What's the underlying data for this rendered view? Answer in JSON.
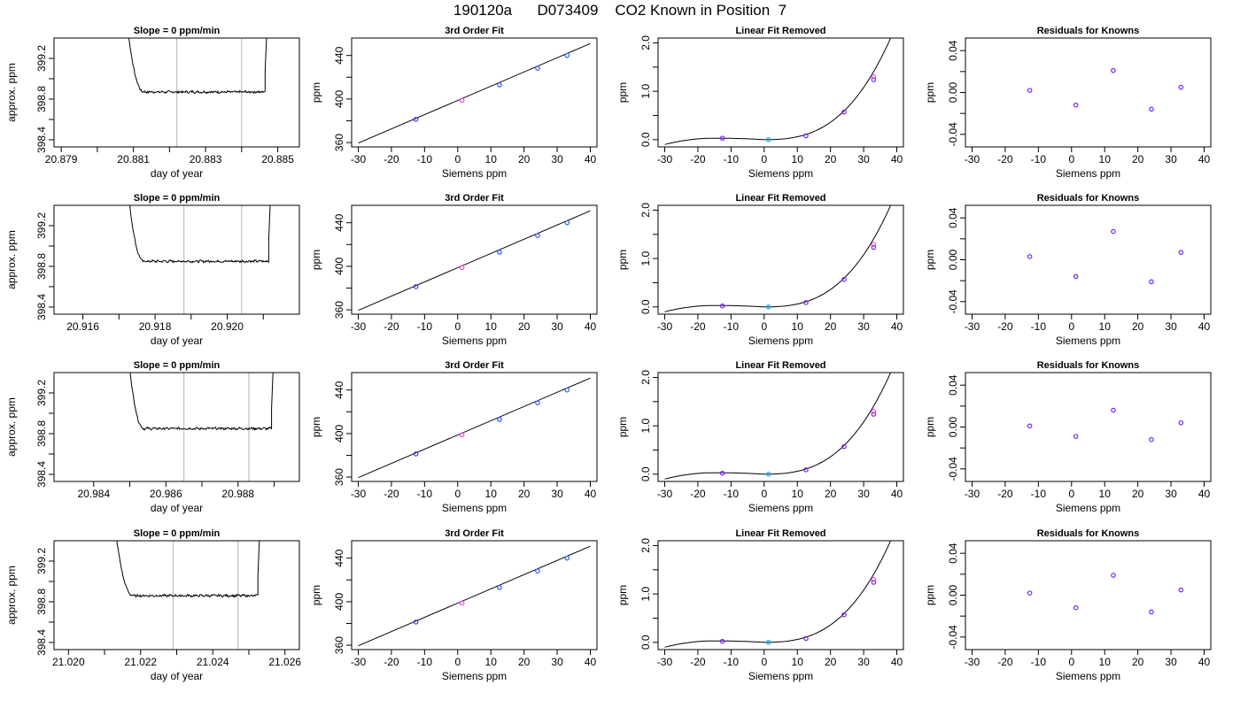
{
  "page": {
    "title": "190120a      D073409    CO2 Known in Position  7"
  },
  "chart_data": [
    {
      "row": 1,
      "panel": "time_trace",
      "type": "line",
      "title": "Slope =  0  ppm/min",
      "xlabel": "day of year",
      "ylabel": "approx. ppm",
      "xlim": [
        20.8788,
        20.8856
      ],
      "ylim": [
        398.33,
        399.4
      ],
      "xticks": [
        20.879,
        20.88,
        20.881,
        20.882,
        20.883,
        20.884,
        20.885
      ],
      "xticklabels": [
        "20.879",
        "",
        "20.881",
        "",
        "20.883",
        "",
        "20.885"
      ],
      "yticks": [
        398.4,
        398.6,
        398.8,
        399.0,
        399.2
      ],
      "yticklabels": [
        "398.4",
        "",
        "398.8",
        "",
        "399.2"
      ],
      "vlines": [
        20.8822,
        20.884
      ],
      "x_start": 20.8806,
      "x_end": 20.88465,
      "settle_x": 20.8813,
      "baseline": 398.87,
      "noise": 0.01
    },
    {
      "row": 1,
      "panel": "fit",
      "type": "scatter",
      "title": "3rd Order Fit",
      "xlabel": "Siemens ppm",
      "ylabel": "ppm",
      "xlim": [
        -32,
        42
      ],
      "ylim": [
        356,
        456
      ],
      "xticks": [
        -30,
        -20,
        -10,
        0,
        10,
        20,
        30,
        40
      ],
      "yticks": [
        360,
        380,
        400,
        420,
        440
      ],
      "yticklabels": [
        "360",
        "",
        "400",
        "",
        "440"
      ],
      "points_x": [
        -12.6,
        1.3,
        12.6,
        24.1,
        33.0
      ],
      "points_y": [
        381.3,
        398.8,
        413.0,
        428.2,
        440.0
      ],
      "point_colors": [
        "#5a2bff",
        "#ff44dd",
        "#2255ff",
        "#3355ff",
        "#2266ff"
      ],
      "curve_x": [
        -30,
        40
      ],
      "curve_y": [
        359.5,
        451.0
      ]
    },
    {
      "row": 1,
      "panel": "linear_removed",
      "type": "scatter",
      "title": "Linear Fit Removed",
      "xlabel": "Siemens ppm",
      "ylabel": "ppm",
      "xlim": [
        -32,
        42
      ],
      "ylim": [
        -0.15,
        2.1
      ],
      "xticks": [
        -30,
        -20,
        -10,
        0,
        10,
        20,
        30,
        40
      ],
      "yticks": [
        0.0,
        0.5,
        1.0,
        1.5,
        2.0
      ],
      "yticklabels": [
        "0.0",
        "",
        "1.0",
        "",
        "2.0"
      ],
      "points_x": [
        -12.6,
        1.3,
        12.6,
        24.1,
        33.0,
        33.0
      ],
      "points_y": [
        0.03,
        0.0,
        0.08,
        0.57,
        1.24,
        1.3
      ],
      "point_colors": [
        "#7722ff",
        "#22aaff",
        "#7722ff",
        "#7722ff",
        "#7722ff",
        "#ff44dd"
      ],
      "curve_c": [
        0.0,
        0.0,
        0.0007,
        1.25e-05
      ]
    },
    {
      "row": 1,
      "panel": "residuals",
      "type": "scatter",
      "title": "Residuals for Knowns",
      "xlabel": "Siemens ppm",
      "ylabel": "ppm",
      "xlim": [
        -32,
        42
      ],
      "ylim": [
        -0.052,
        0.052
      ],
      "xticks": [
        -30,
        -20,
        -10,
        0,
        10,
        20,
        30,
        40
      ],
      "yticks": [
        -0.04,
        -0.02,
        0.0,
        0.02,
        0.04
      ],
      "yticklabels": [
        "-0.04",
        "",
        "0.00",
        "",
        "0.04"
      ],
      "points_x": [
        -12.6,
        1.3,
        12.6,
        24.1,
        33.0
      ],
      "points_y": [
        0.002,
        -0.012,
        0.021,
        -0.016,
        0.005
      ],
      "point_colors": [
        "#7722ff",
        "#7722ff",
        "#7722ff",
        "#7722ff",
        "#7722ff"
      ]
    },
    {
      "row": 2,
      "panel": "time_trace",
      "type": "line",
      "title": "Slope =  0  ppm/min",
      "xlabel": "day of year",
      "ylabel": "approx. ppm",
      "xlim": [
        20.9152,
        20.922
      ],
      "ylim": [
        398.33,
        399.4
      ],
      "xticks": [
        20.916,
        20.917,
        20.918,
        20.919,
        20.92,
        20.921
      ],
      "xticklabels": [
        "20.916",
        "",
        "20.918",
        "",
        "20.920",
        ""
      ],
      "yticks": [
        398.4,
        398.6,
        398.8,
        399.0,
        399.2
      ],
      "yticklabels": [
        "398.4",
        "",
        "398.8",
        "",
        "399.2"
      ],
      "vlines": [
        20.9188,
        20.9204
      ],
      "x_start": 20.91705,
      "x_end": 20.92115,
      "settle_x": 20.9177,
      "baseline": 398.85,
      "noise": 0.01
    },
    {
      "row": 2,
      "panel": "fit",
      "type": "scatter",
      "title": "3rd Order Fit",
      "xlabel": "Siemens ppm",
      "ylabel": "ppm",
      "xlim": [
        -32,
        42
      ],
      "ylim": [
        356,
        456
      ],
      "xticks": [
        -30,
        -20,
        -10,
        0,
        10,
        20,
        30,
        40
      ],
      "yticks": [
        360,
        380,
        400,
        420,
        440
      ],
      "yticklabels": [
        "360",
        "",
        "400",
        "",
        "440"
      ],
      "points_x": [
        -12.6,
        1.3,
        12.6,
        24.1,
        33.0
      ],
      "points_y": [
        381.3,
        398.8,
        413.0,
        428.2,
        440.0
      ],
      "point_colors": [
        "#5a2bff",
        "#ff44dd",
        "#2255ff",
        "#3355ff",
        "#2266ff"
      ],
      "curve_x": [
        -30,
        40
      ],
      "curve_y": [
        359.5,
        451.0
      ]
    },
    {
      "row": 2,
      "panel": "linear_removed",
      "type": "scatter",
      "title": "Linear Fit Removed",
      "xlabel": "Siemens ppm",
      "ylabel": "ppm",
      "xlim": [
        -32,
        42
      ],
      "ylim": [
        -0.15,
        2.1
      ],
      "xticks": [
        -30,
        -20,
        -10,
        0,
        10,
        20,
        30,
        40
      ],
      "yticks": [
        0.0,
        0.5,
        1.0,
        1.5,
        2.0
      ],
      "yticklabels": [
        "0.0",
        "",
        "1.0",
        "",
        "2.0"
      ],
      "points_x": [
        -12.6,
        1.3,
        12.6,
        24.1,
        33.0,
        33.0
      ],
      "points_y": [
        0.02,
        0.0,
        0.09,
        0.57,
        1.23,
        1.29
      ],
      "point_colors": [
        "#7722ff",
        "#22aaff",
        "#7722ff",
        "#7722ff",
        "#7722ff",
        "#ff44dd"
      ],
      "curve_c": [
        0.0,
        0.0,
        0.0007,
        1.25e-05
      ]
    },
    {
      "row": 2,
      "panel": "residuals",
      "type": "scatter",
      "title": "Residuals for Knowns",
      "xlabel": "Siemens ppm",
      "ylabel": "ppm",
      "xlim": [
        -32,
        42
      ],
      "ylim": [
        -0.052,
        0.052
      ],
      "xticks": [
        -30,
        -20,
        -10,
        0,
        10,
        20,
        30,
        40
      ],
      "yticks": [
        -0.04,
        -0.02,
        0.0,
        0.02,
        0.04
      ],
      "yticklabels": [
        "-0.04",
        "",
        "0.00",
        "",
        "0.04"
      ],
      "points_x": [
        -12.6,
        1.3,
        12.6,
        24.1,
        33.0
      ],
      "points_y": [
        0.003,
        -0.016,
        0.027,
        -0.021,
        0.007
      ],
      "point_colors": [
        "#7722ff",
        "#7722ff",
        "#7722ff",
        "#7722ff",
        "#7722ff"
      ]
    },
    {
      "row": 3,
      "panel": "time_trace",
      "type": "line",
      "title": "Slope =  0  ppm/min",
      "xlabel": "day of year",
      "ylabel": "approx. ppm",
      "xlim": [
        20.9829,
        20.9897
      ],
      "ylim": [
        398.33,
        399.4
      ],
      "xticks": [
        20.984,
        20.985,
        20.986,
        20.987,
        20.988,
        20.989
      ],
      "xticklabels": [
        "20.984",
        "",
        "20.986",
        "",
        "20.988",
        ""
      ],
      "yticks": [
        398.4,
        398.6,
        398.8,
        399.0,
        399.2
      ],
      "yticklabels": [
        "398.4",
        "",
        "398.8",
        "",
        "399.2"
      ],
      "vlines": [
        20.9865,
        20.9883
      ],
      "x_start": 20.98477,
      "x_end": 20.98893,
      "settle_x": 20.9854,
      "baseline": 398.85,
      "noise": 0.01
    },
    {
      "row": 3,
      "panel": "fit",
      "type": "scatter",
      "title": "3rd Order Fit",
      "xlabel": "Siemens ppm",
      "ylabel": "ppm",
      "xlim": [
        -32,
        42
      ],
      "ylim": [
        356,
        456
      ],
      "xticks": [
        -30,
        -20,
        -10,
        0,
        10,
        20,
        30,
        40
      ],
      "yticks": [
        360,
        380,
        400,
        420,
        440
      ],
      "yticklabels": [
        "360",
        "",
        "400",
        "",
        "440"
      ],
      "points_x": [
        -12.6,
        1.3,
        12.6,
        24.1,
        33.0
      ],
      "points_y": [
        381.3,
        398.8,
        413.0,
        428.2,
        440.0
      ],
      "point_colors": [
        "#5a2bff",
        "#ff44dd",
        "#2255ff",
        "#3355ff",
        "#2266ff"
      ],
      "curve_x": [
        -30,
        40
      ],
      "curve_y": [
        359.5,
        451.0
      ]
    },
    {
      "row": 3,
      "panel": "linear_removed",
      "type": "scatter",
      "title": "Linear Fit Removed",
      "xlabel": "Siemens ppm",
      "ylabel": "ppm",
      "xlim": [
        -32,
        42
      ],
      "ylim": [
        -0.15,
        2.1
      ],
      "xticks": [
        -30,
        -20,
        -10,
        0,
        10,
        20,
        30,
        40
      ],
      "yticks": [
        0.0,
        0.5,
        1.0,
        1.5,
        2.0
      ],
      "yticklabels": [
        "0.0",
        "",
        "1.0",
        "",
        "2.0"
      ],
      "points_x": [
        -12.6,
        1.3,
        12.6,
        24.1,
        33.0,
        33.0
      ],
      "points_y": [
        0.02,
        0.0,
        0.09,
        0.57,
        1.24,
        1.3
      ],
      "point_colors": [
        "#7722ff",
        "#22aaff",
        "#7722ff",
        "#7722ff",
        "#7722ff",
        "#ff44dd"
      ],
      "curve_c": [
        0.0,
        0.0,
        0.0007,
        1.25e-05
      ]
    },
    {
      "row": 3,
      "panel": "residuals",
      "type": "scatter",
      "title": "Residuals for Knowns",
      "xlabel": "Siemens ppm",
      "ylabel": "ppm",
      "xlim": [
        -32,
        42
      ],
      "ylim": [
        -0.052,
        0.052
      ],
      "xticks": [
        -30,
        -20,
        -10,
        0,
        10,
        20,
        30,
        40
      ],
      "yticks": [
        -0.04,
        -0.02,
        0.0,
        0.02,
        0.04
      ],
      "yticklabels": [
        "-0.04",
        "",
        "0.00",
        "",
        "0.04"
      ],
      "points_x": [
        -12.6,
        1.3,
        12.6,
        24.1,
        33.0
      ],
      "points_y": [
        0.001,
        -0.009,
        0.016,
        -0.012,
        0.004
      ],
      "point_colors": [
        "#7722ff",
        "#7722ff",
        "#7722ff",
        "#7722ff",
        "#7722ff"
      ]
    },
    {
      "row": 4,
      "panel": "time_trace",
      "type": "line",
      "title": "Slope =  0  ppm/min",
      "xlabel": "day of year",
      "ylabel": "approx. ppm",
      "xlim": [
        21.0196,
        21.0264
      ],
      "ylim": [
        398.33,
        399.4
      ],
      "xticks": [
        21.02,
        21.021,
        21.022,
        21.023,
        21.024,
        21.025,
        21.026
      ],
      "xticklabels": [
        "21.020",
        "",
        "21.022",
        "",
        "21.024",
        "",
        "21.026"
      ],
      "yticks": [
        398.4,
        398.6,
        398.8,
        399.0,
        399.2
      ],
      "yticklabels": [
        "398.4",
        "",
        "398.8",
        "",
        "399.2"
      ],
      "vlines": [
        21.0229,
        21.0247
      ],
      "x_start": 21.02105,
      "x_end": 21.02525,
      "settle_x": 21.0218,
      "baseline": 398.86,
      "noise": 0.01
    },
    {
      "row": 4,
      "panel": "fit",
      "type": "scatter",
      "title": "3rd Order Fit",
      "xlabel": "Siemens ppm",
      "ylabel": "ppm",
      "xlim": [
        -32,
        42
      ],
      "ylim": [
        356,
        456
      ],
      "xticks": [
        -30,
        -20,
        -10,
        0,
        10,
        20,
        30,
        40
      ],
      "yticks": [
        360,
        380,
        400,
        420,
        440
      ],
      "yticklabels": [
        "360",
        "",
        "400",
        "",
        "440"
      ],
      "points_x": [
        -12.6,
        1.3,
        12.6,
        24.1,
        33.0
      ],
      "points_y": [
        381.3,
        398.8,
        413.0,
        428.2,
        440.0
      ],
      "point_colors": [
        "#5a2bff",
        "#ff44dd",
        "#2255ff",
        "#3355ff",
        "#2266ff"
      ],
      "curve_x": [
        -30,
        40
      ],
      "curve_y": [
        359.5,
        451.0
      ]
    },
    {
      "row": 4,
      "panel": "linear_removed",
      "type": "scatter",
      "title": "Linear Fit Removed",
      "xlabel": "Siemens ppm",
      "ylabel": "ppm",
      "xlim": [
        -32,
        42
      ],
      "ylim": [
        -0.15,
        2.1
      ],
      "xticks": [
        -30,
        -20,
        -10,
        0,
        10,
        20,
        30,
        40
      ],
      "yticks": [
        0.0,
        0.5,
        1.0,
        1.5,
        2.0
      ],
      "yticklabels": [
        "0.0",
        "",
        "1.0",
        "",
        "2.0"
      ],
      "points_x": [
        -12.6,
        1.3,
        12.6,
        24.1,
        33.0,
        33.0
      ],
      "points_y": [
        0.02,
        0.0,
        0.08,
        0.57,
        1.24,
        1.3
      ],
      "point_colors": [
        "#7722ff",
        "#22aaff",
        "#7722ff",
        "#7722ff",
        "#7722ff",
        "#ff44dd"
      ],
      "curve_c": [
        0.0,
        0.0,
        0.0007,
        1.25e-05
      ]
    },
    {
      "row": 4,
      "panel": "residuals",
      "type": "scatter",
      "title": "Residuals for Knowns",
      "xlabel": "Siemens ppm",
      "ylabel": "ppm",
      "xlim": [
        -32,
        42
      ],
      "ylim": [
        -0.052,
        0.052
      ],
      "xticks": [
        -30,
        -20,
        -10,
        0,
        10,
        20,
        30,
        40
      ],
      "yticks": [
        -0.04,
        -0.02,
        0.0,
        0.02,
        0.04
      ],
      "yticklabels": [
        "-0.04",
        "",
        "0.00",
        "",
        "0.04"
      ],
      "points_x": [
        -12.6,
        1.3,
        12.6,
        24.1,
        33.0
      ],
      "points_y": [
        0.002,
        -0.012,
        0.019,
        -0.016,
        0.005
      ],
      "point_colors": [
        "#7722ff",
        "#7722ff",
        "#7722ff",
        "#7722ff",
        "#7722ff"
      ]
    }
  ]
}
